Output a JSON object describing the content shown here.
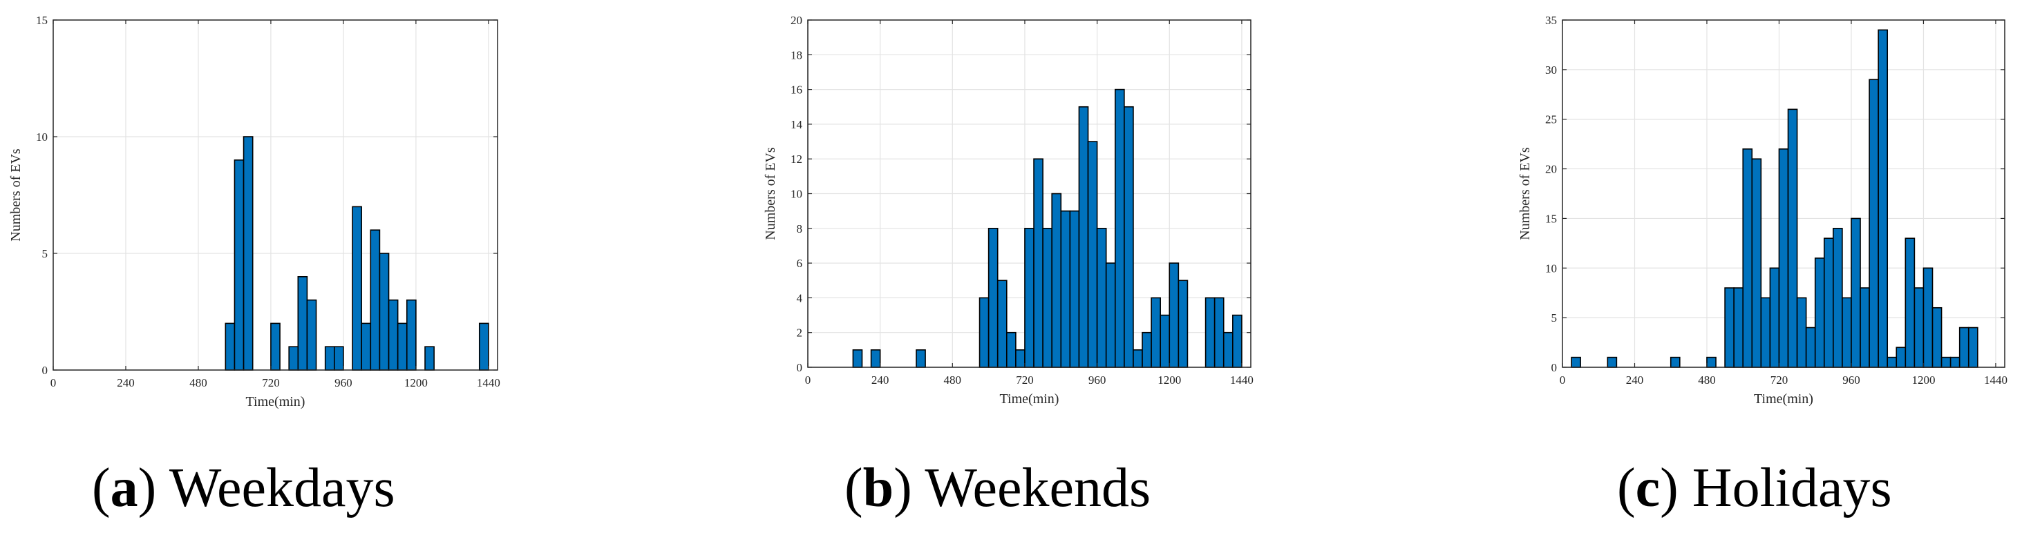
{
  "chart_data": [
    {
      "type": "bar",
      "caption_letter": "a",
      "caption_text": "Weekdays",
      "xlabel": "Time(min)",
      "ylabel": "Numbers of EVs",
      "xlim": [
        0,
        1470
      ],
      "ylim": [
        0,
        15
      ],
      "xticks": [
        0,
        240,
        480,
        720,
        960,
        1200,
        1440
      ],
      "yticks": [
        0,
        5,
        10,
        15
      ],
      "grid": true,
      "bar_color": "#0072BD",
      "bin_width": 30,
      "bins": [
        {
          "x": 570,
          "y": 2
        },
        {
          "x": 600,
          "y": 9
        },
        {
          "x": 630,
          "y": 10
        },
        {
          "x": 720,
          "y": 2
        },
        {
          "x": 780,
          "y": 1
        },
        {
          "x": 810,
          "y": 4
        },
        {
          "x": 840,
          "y": 3
        },
        {
          "x": 900,
          "y": 1
        },
        {
          "x": 930,
          "y": 1
        },
        {
          "x": 990,
          "y": 7
        },
        {
          "x": 1020,
          "y": 2
        },
        {
          "x": 1050,
          "y": 6
        },
        {
          "x": 1080,
          "y": 5
        },
        {
          "x": 1110,
          "y": 3
        },
        {
          "x": 1140,
          "y": 2
        },
        {
          "x": 1170,
          "y": 3
        },
        {
          "x": 1230,
          "y": 1
        },
        {
          "x": 1410,
          "y": 2
        }
      ]
    },
    {
      "type": "bar",
      "caption_letter": "b",
      "caption_text": "Weekends",
      "xlabel": "Time(min)",
      "ylabel": "Numbers of EVs",
      "xlim": [
        0,
        1470
      ],
      "ylim": [
        0,
        20
      ],
      "xticks": [
        0,
        240,
        480,
        720,
        960,
        1200,
        1440
      ],
      "yticks": [
        0,
        2,
        4,
        6,
        8,
        10,
        12,
        14,
        16,
        18,
        20
      ],
      "grid": true,
      "bar_color": "#0072BD",
      "bin_width": 30,
      "bins": [
        {
          "x": 150,
          "y": 1
        },
        {
          "x": 210,
          "y": 1
        },
        {
          "x": 360,
          "y": 1
        },
        {
          "x": 570,
          "y": 4
        },
        {
          "x": 600,
          "y": 8
        },
        {
          "x": 630,
          "y": 5
        },
        {
          "x": 660,
          "y": 2
        },
        {
          "x": 690,
          "y": 1
        },
        {
          "x": 720,
          "y": 8
        },
        {
          "x": 750,
          "y": 12
        },
        {
          "x": 780,
          "y": 8
        },
        {
          "x": 810,
          "y": 10
        },
        {
          "x": 840,
          "y": 9
        },
        {
          "x": 870,
          "y": 9
        },
        {
          "x": 900,
          "y": 15
        },
        {
          "x": 930,
          "y": 13
        },
        {
          "x": 960,
          "y": 8
        },
        {
          "x": 990,
          "y": 6
        },
        {
          "x": 1020,
          "y": 16
        },
        {
          "x": 1050,
          "y": 15
        },
        {
          "x": 1080,
          "y": 1
        },
        {
          "x": 1110,
          "y": 2
        },
        {
          "x": 1140,
          "y": 4
        },
        {
          "x": 1170,
          "y": 3
        },
        {
          "x": 1200,
          "y": 6
        },
        {
          "x": 1230,
          "y": 5
        },
        {
          "x": 1320,
          "y": 4
        },
        {
          "x": 1350,
          "y": 4
        },
        {
          "x": 1380,
          "y": 2
        },
        {
          "x": 1410,
          "y": 3
        }
      ]
    },
    {
      "type": "bar",
      "caption_letter": "c",
      "caption_text": "Holidays",
      "xlabel": "Time(min)",
      "ylabel": "Numbers of EVs",
      "xlim": [
        0,
        1470
      ],
      "ylim": [
        0,
        35
      ],
      "xticks": [
        0,
        240,
        480,
        720,
        960,
        1200,
        1440
      ],
      "yticks": [
        0,
        5,
        10,
        15,
        20,
        25,
        30,
        35
      ],
      "grid": true,
      "bar_color": "#0072BD",
      "bin_width": 30,
      "bins": [
        {
          "x": 30,
          "y": 1
        },
        {
          "x": 150,
          "y": 1
        },
        {
          "x": 360,
          "y": 1
        },
        {
          "x": 480,
          "y": 1
        },
        {
          "x": 540,
          "y": 8
        },
        {
          "x": 570,
          "y": 8
        },
        {
          "x": 600,
          "y": 22
        },
        {
          "x": 630,
          "y": 21
        },
        {
          "x": 660,
          "y": 7
        },
        {
          "x": 690,
          "y": 10
        },
        {
          "x": 720,
          "y": 22
        },
        {
          "x": 750,
          "y": 26
        },
        {
          "x": 780,
          "y": 7
        },
        {
          "x": 810,
          "y": 4
        },
        {
          "x": 840,
          "y": 11
        },
        {
          "x": 870,
          "y": 13
        },
        {
          "x": 900,
          "y": 14
        },
        {
          "x": 930,
          "y": 7
        },
        {
          "x": 960,
          "y": 15
        },
        {
          "x": 990,
          "y": 8
        },
        {
          "x": 1020,
          "y": 29
        },
        {
          "x": 1050,
          "y": 34
        },
        {
          "x": 1080,
          "y": 1
        },
        {
          "x": 1110,
          "y": 2
        },
        {
          "x": 1140,
          "y": 13
        },
        {
          "x": 1170,
          "y": 8
        },
        {
          "x": 1200,
          "y": 10
        },
        {
          "x": 1230,
          "y": 6
        },
        {
          "x": 1260,
          "y": 1
        },
        {
          "x": 1290,
          "y": 1
        },
        {
          "x": 1320,
          "y": 4
        },
        {
          "x": 1350,
          "y": 4
        }
      ]
    }
  ]
}
